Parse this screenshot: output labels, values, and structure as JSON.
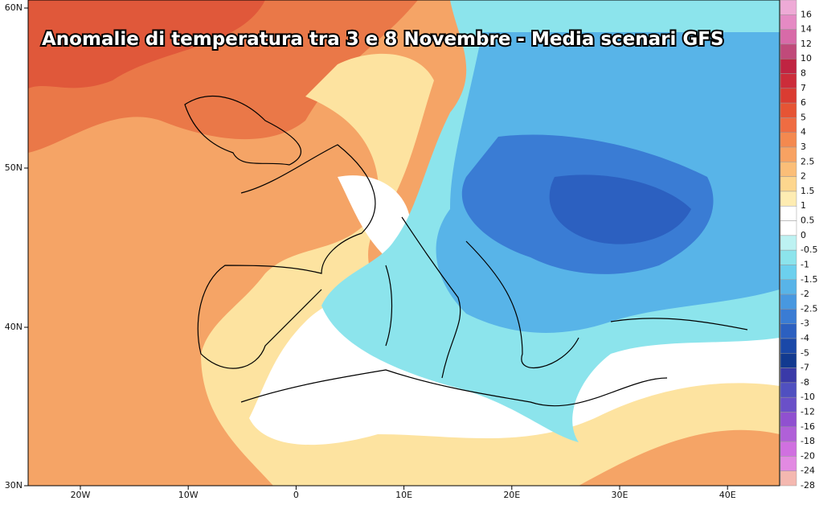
{
  "title": "Anomalie di temperatura tra 3 e 8 Novembre - Media scenari GFS",
  "lat_ticks": [
    "60N",
    "50N",
    "40N",
    "30N"
  ],
  "lon_ticks": [
    "20W",
    "10W",
    "0",
    "10E",
    "20E",
    "30E",
    "40E"
  ],
  "colorbar": [
    {
      "label": 16,
      "color": "#eeaad6"
    },
    {
      "label": 14,
      "color": "#e58ac4"
    },
    {
      "label": 12,
      "color": "#d86aa8"
    },
    {
      "label": 10,
      "color": "#c04a7a"
    },
    {
      "label": 8,
      "color": "#c02442"
    },
    {
      "label": 7,
      "color": "#cc2c3a"
    },
    {
      "label": 6,
      "color": "#da3c32"
    },
    {
      "label": 5,
      "color": "#e65434"
    },
    {
      "label": 4,
      "color": "#ef6c42"
    },
    {
      "label": 3,
      "color": "#f4894f"
    },
    {
      "label": 2.5,
      "color": "#f8a262"
    },
    {
      "label": 2,
      "color": "#fbbe78"
    },
    {
      "label": 1.5,
      "color": "#fdd68e"
    },
    {
      "label": 1,
      "color": "#feecb2"
    },
    {
      "label": 0.5,
      "color": "#ffffff"
    },
    {
      "label": 0,
      "color": "#ffffff"
    },
    {
      "label": -0.5,
      "color": "#bdf2f2"
    },
    {
      "label": -1,
      "color": "#8ce4ec"
    },
    {
      "label": -1.5,
      "color": "#6cd0ee"
    },
    {
      "label": -2,
      "color": "#58b4e8"
    },
    {
      "label": -2.5,
      "color": "#4898e0"
    },
    {
      "label": -3,
      "color": "#3a7cd4"
    },
    {
      "label": -4,
      "color": "#2c60c0"
    },
    {
      "label": -5,
      "color": "#1a48a8"
    },
    {
      "label": -7,
      "color": "#123a90"
    },
    {
      "label": -8,
      "color": "#3a3aa8"
    },
    {
      "label": -10,
      "color": "#5050c0"
    },
    {
      "label": -12,
      "color": "#6a50c8"
    },
    {
      "label": -16,
      "color": "#9050d0"
    },
    {
      "label": -18,
      "color": "#b060d8"
    },
    {
      "label": -20,
      "color": "#d070e0"
    },
    {
      "label": -24,
      "color": "#e28ae2"
    },
    {
      "label": -28,
      "color": "#f4b8b0"
    }
  ]
}
